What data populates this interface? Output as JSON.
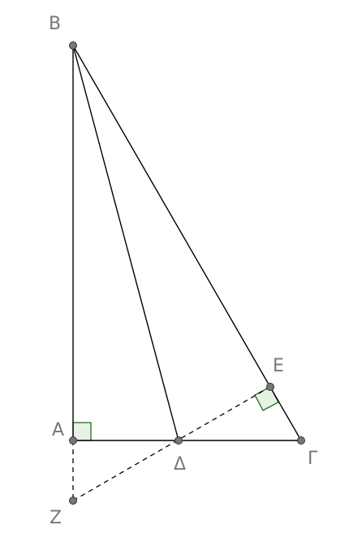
{
  "figure": {
    "points": {
      "B": "B",
      "A": "A",
      "Delta": "Δ",
      "Gamma": "Γ",
      "E": "E",
      "Z": "Z"
    },
    "colors": {
      "line": "#000000",
      "point_fill": "#777777",
      "label": "#777777",
      "right_angle_stroke": "#1b6b1b",
      "right_angle_fill": "#e6f2e6"
    }
  }
}
